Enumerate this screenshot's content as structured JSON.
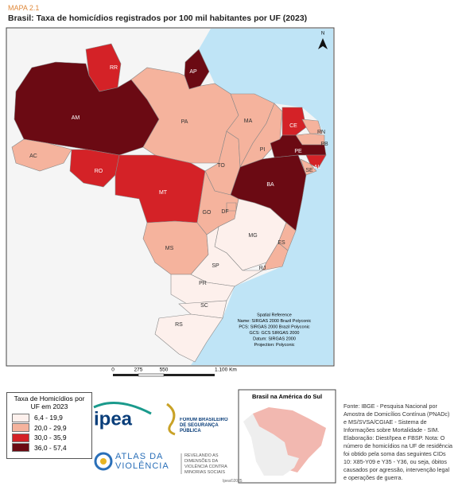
{
  "header": {
    "kicker": "MAPA 2.1",
    "title": "Brasil: Taxa de homicídios registrados por 100 mil habitantes por UF (2023)"
  },
  "map": {
    "north": "N",
    "states": [
      {
        "abbr": "RR",
        "class": 2
      },
      {
        "abbr": "AP",
        "class": 3
      },
      {
        "abbr": "AM",
        "class": 3
      },
      {
        "abbr": "AC",
        "class": 1
      },
      {
        "abbr": "PA",
        "class": 1
      },
      {
        "abbr": "RO",
        "class": 2
      },
      {
        "abbr": "MT",
        "class": 2
      },
      {
        "abbr": "TO",
        "class": 1
      },
      {
        "abbr": "MA",
        "class": 1
      },
      {
        "abbr": "PI",
        "class": 1
      },
      {
        "abbr": "CE",
        "class": 2
      },
      {
        "abbr": "RN",
        "class": 1
      },
      {
        "abbr": "PB",
        "class": 1
      },
      {
        "abbr": "PE",
        "class": 3
      },
      {
        "abbr": "AL",
        "class": 2
      },
      {
        "abbr": "SE",
        "class": 1
      },
      {
        "abbr": "BA",
        "class": 3
      },
      {
        "abbr": "GO",
        "class": 1
      },
      {
        "abbr": "DF",
        "class": 1
      },
      {
        "abbr": "MG",
        "class": 0
      },
      {
        "abbr": "ES",
        "class": 1
      },
      {
        "abbr": "RJ",
        "class": 1
      },
      {
        "abbr": "MS",
        "class": 1
      },
      {
        "abbr": "SP",
        "class": 0
      },
      {
        "abbr": "PR",
        "class": 0
      },
      {
        "abbr": "SC",
        "class": 0
      },
      {
        "abbr": "RS",
        "class": 0
      }
    ],
    "spatial_reference": [
      "Spatial Reference",
      "Name: SIRGAS 2000 Brazil Polyconic",
      "PCS: SIRGAS 2000 Brazil Polyconic",
      "GCS: GCS SIRGAS 2000",
      "Datum: SIRGAS 2000",
      "Projection: Polyconic"
    ],
    "scale": [
      "0",
      "275",
      "550",
      "1.100 Km"
    ]
  },
  "legend": {
    "title": "Taxa de Homicídios por UF em 2023",
    "items": [
      {
        "label": "6,4 - 19,9",
        "color": "#fdf0ec"
      },
      {
        "label": "20,0 - 29,9",
        "color": "#f5b39d"
      },
      {
        "label": "30,0 - 35,9",
        "color": "#d42227"
      },
      {
        "label": "36,0 - 57,4",
        "color": "#6b0a13"
      }
    ]
  },
  "logos": {
    "ipea": "ipea",
    "fbsp": "FÓRUM BRASILEIRO DE SEGURANÇA PÚBLICA",
    "atlas": "ATLAS DA VIOLÊNCIA",
    "atlas_tagline": "REVELANDO AS DIMENSÕES DA VIOLÊNCIA CONTRA MINORIAS SOCIAIS"
  },
  "inset": {
    "title": "Brasil na América do Sul"
  },
  "source": "Fonte: IBGE - Pesquisa Nacional por Amostra de Domicílios Contínua (PNADc) e MS/SVSA/CGIAE - Sistema de Informações sobre Mortalidade - SIM. Elaboração: Diest/Ipea e FBSP. Nota: O número de homicídios na UF de residência foi obtido pela soma das seguintes CIDs 10: X85-Y09 e Y35 - Y36, ou seja, óbitos causados por agressão, intervenção legal e operações de guerra.",
  "footer": "Ipea©2025"
}
